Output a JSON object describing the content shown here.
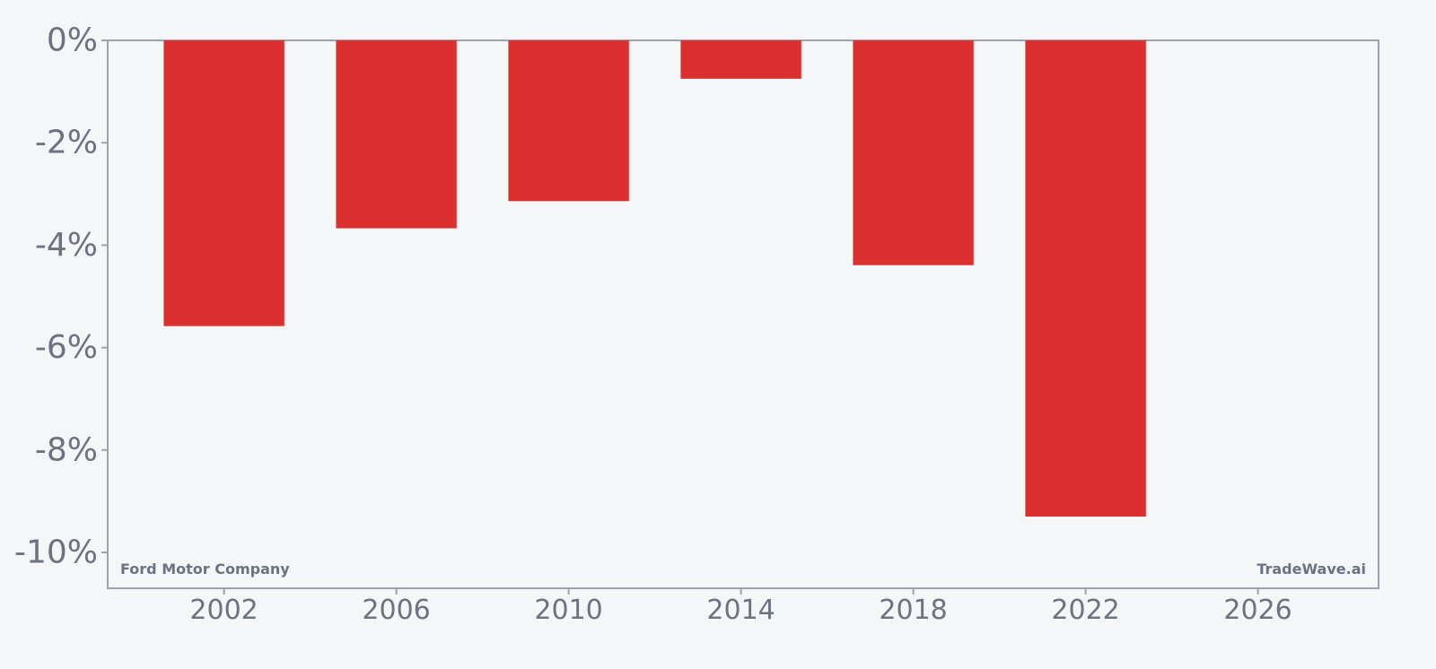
{
  "chart_data": {
    "type": "bar",
    "categories": [
      "2002",
      "2006",
      "2010",
      "2014",
      "2018",
      "2022"
    ],
    "values": [
      -5.58,
      -3.67,
      -3.14,
      -0.75,
      -4.39,
      -9.3
    ],
    "value_unit": "%",
    "title": "",
    "xlabel": "",
    "ylabel": "",
    "xlim": [
      1999.3,
      2028.8
    ],
    "ylim": [
      -10.7,
      0
    ],
    "x_ticks": [
      2002,
      2006,
      2010,
      2014,
      2018,
      2022,
      2026
    ],
    "x_tick_labels": [
      "2002",
      "2006",
      "2010",
      "2014",
      "2018",
      "2022",
      "2026"
    ],
    "y_ticks": [
      0,
      -2,
      -4,
      -6,
      -8,
      -10
    ],
    "y_tick_labels": [
      "0%",
      "-2%",
      "-4%",
      "-6%",
      "-8%",
      "-10%"
    ],
    "bar_width_years": 2.8,
    "grid": false,
    "bar_color": "#dc3030",
    "axis_color": "#9ca3af",
    "text_color": "#6b7280",
    "background_color": "#f4f6f8"
  },
  "annotations": {
    "company": "Ford Motor Company",
    "watermark": "TradeWave.ai"
  }
}
